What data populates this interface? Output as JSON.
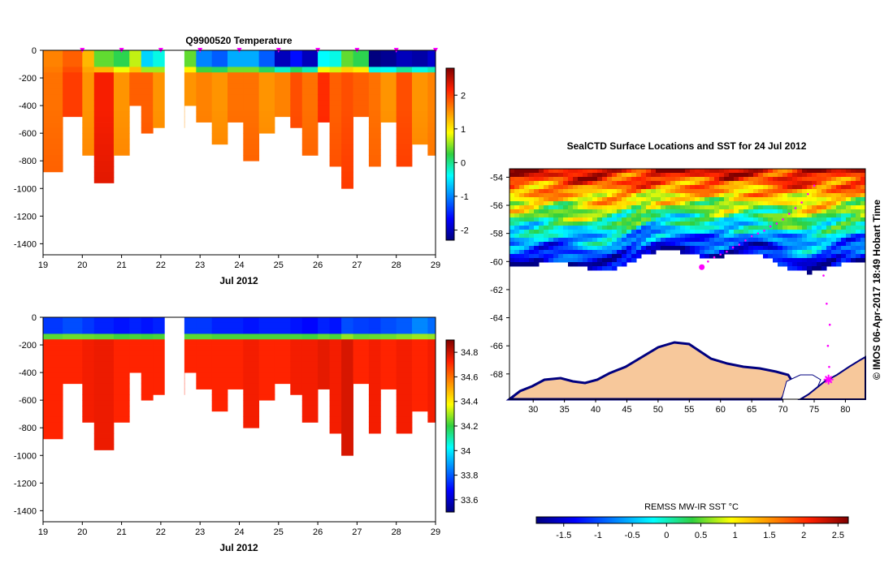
{
  "chart_data": [
    {
      "type": "heatmap",
      "title": "Q9900520  Temperature",
      "xlabel": "Jul 2012",
      "x_tick_labels": [
        "19",
        "20",
        "21",
        "22",
        "23",
        "24",
        "25",
        "26",
        "27",
        "28",
        "29"
      ],
      "y_tick_labels": [
        "0",
        "-200",
        "-400",
        "-600",
        "-800",
        "-1000",
        "-1200",
        "-1400"
      ],
      "xlim": [
        19,
        29
      ],
      "ylim": [
        -1480,
        0
      ],
      "colorbar": {
        "ticks": [
          "2",
          "1",
          "0",
          "-1",
          "-2"
        ],
        "range": [
          -2.3,
          2.8
        ]
      },
      "profile_times": [
        19.0,
        19.5,
        20.0,
        20.3,
        20.8,
        21.2,
        21.5,
        21.8,
        22.6,
        22.9,
        23.3,
        23.7,
        24.1,
        24.5,
        24.9,
        25.3,
        25.6,
        26.0,
        26.3,
        26.6,
        26.9,
        27.3,
        27.6,
        28.0,
        28.4,
        28.8
      ],
      "profile_max_depth": [
        -860,
        -480,
        -750,
        -930,
        -750,
        -400,
        -600,
        -530,
        -400,
        -500,
        -680,
        -500,
        -780,
        -600,
        -480,
        -560,
        -730,
        -500,
        -820,
        -1000,
        -480,
        -840,
        -500,
        -830,
        -650,
        -750
      ],
      "surface_temp": [
        1.6,
        1.8,
        1.3,
        0.4,
        0.2,
        0.7,
        -0.6,
        -0.3,
        0.4,
        -1.0,
        -1.2,
        -0.8,
        -0.8,
        -1.2,
        -2.0,
        -1.6,
        -2.0,
        -0.4,
        -0.3,
        0.4,
        0.2,
        -2.3,
        -2.2,
        -2.0,
        -2.1,
        -1.9
      ],
      "deep_temp": [
        1.7,
        2.0,
        1.5,
        2.2,
        1.5,
        1.8,
        1.8,
        1.5,
        1.5,
        1.6,
        1.5,
        1.7,
        1.7,
        1.5,
        1.6,
        1.9,
        1.7,
        2.1,
        1.8,
        1.9,
        1.8,
        1.7,
        1.5,
        1.9,
        1.5,
        1.6
      ],
      "markers": [
        "20.0",
        "21.0",
        "22.0",
        "23.0",
        "24.0",
        "25.0",
        "26.0",
        "27.0",
        "28.0",
        "29.0"
      ]
    },
    {
      "type": "heatmap",
      "title": "",
      "xlabel": "Jul 2012",
      "x_tick_labels": [
        "19",
        "20",
        "21",
        "22",
        "23",
        "24",
        "25",
        "26",
        "27",
        "28",
        "29"
      ],
      "y_tick_labels": [
        "0",
        "-200",
        "-400",
        "-600",
        "-800",
        "-1000",
        "-1200",
        "-1400"
      ],
      "xlim": [
        19,
        29
      ],
      "ylim": [
        -1480,
        0
      ],
      "colorbar": {
        "ticks": [
          "34.8",
          "34.6",
          "34.4",
          "34.2",
          "34",
          "33.8",
          "33.6"
        ],
        "range": [
          33.5,
          34.9
        ]
      },
      "surface_sal": [
        33.75,
        33.78,
        33.75,
        33.72,
        33.7,
        33.72,
        33.7,
        33.72,
        33.75,
        33.75,
        33.72,
        33.72,
        33.7,
        33.72,
        33.72,
        33.7,
        33.68,
        33.72,
        33.7,
        33.78,
        33.76,
        33.75,
        33.78,
        33.8,
        33.86,
        33.82
      ],
      "deep_sal": [
        34.72,
        34.72,
        34.74,
        34.75,
        34.72,
        34.72,
        34.72,
        34.72,
        34.72,
        34.72,
        34.72,
        34.72,
        34.74,
        34.72,
        34.72,
        34.74,
        34.74,
        34.76,
        34.74,
        34.78,
        34.72,
        34.74,
        34.72,
        34.74,
        34.72,
        34.74
      ]
    },
    {
      "type": "map",
      "title": "SealCTD Surface Locations and SST for 24 Jul 2012",
      "x_tick_labels": [
        "30",
        "35",
        "40",
        "45",
        "50",
        "55",
        "60",
        "65",
        "70",
        "75",
        "80"
      ],
      "y_tick_labels": [
        "-54",
        "-56",
        "-58",
        "-60",
        "-62",
        "-64",
        "-66",
        "-68"
      ],
      "xlim": [
        26.2,
        83.2
      ],
      "ylim": [
        -69.8,
        -53.4
      ],
      "colorbar_label": "REMSS MW-IR SST °C",
      "colorbar_ticks": [
        "-1.5",
        "-1",
        "-0.5",
        "0",
        "0.5",
        "1",
        "1.5",
        "2",
        "2.5"
      ],
      "colorbar_range": [
        -1.9,
        2.65
      ],
      "track_points": [
        [
          57.2,
          -60.3
        ],
        [
          58.0,
          -60.0
        ],
        [
          59.0,
          -59.7
        ],
        [
          60.0,
          -59.5
        ],
        [
          61.0,
          -59.3
        ],
        [
          62.0,
          -59.0
        ],
        [
          63.0,
          -58.8
        ],
        [
          64.0,
          -58.5
        ],
        [
          65.0,
          -58.2
        ],
        [
          66.0,
          -58.0
        ],
        [
          67.0,
          -57.8
        ],
        [
          68.0,
          -57.5
        ],
        [
          69.0,
          -57.3
        ],
        [
          70.0,
          -57.0
        ],
        [
          71.0,
          -56.6
        ],
        [
          72.0,
          -56.2
        ],
        [
          73.0,
          -55.8
        ],
        [
          74.0,
          -55.2
        ],
        [
          75.0,
          -54.6
        ],
        [
          76.5,
          -61.0
        ],
        [
          77.0,
          -63.0
        ],
        [
          77.5,
          -64.5
        ],
        [
          77.2,
          -66.0
        ],
        [
          77.4,
          -67.5
        ]
      ],
      "current_position": [
        77.3,
        -68.4
      ],
      "start_position": [
        57.0,
        -60.4
      ]
    }
  ],
  "sidebar_stamp": "© IMOS 06-Apr-2017 18:49 Hobart Time"
}
